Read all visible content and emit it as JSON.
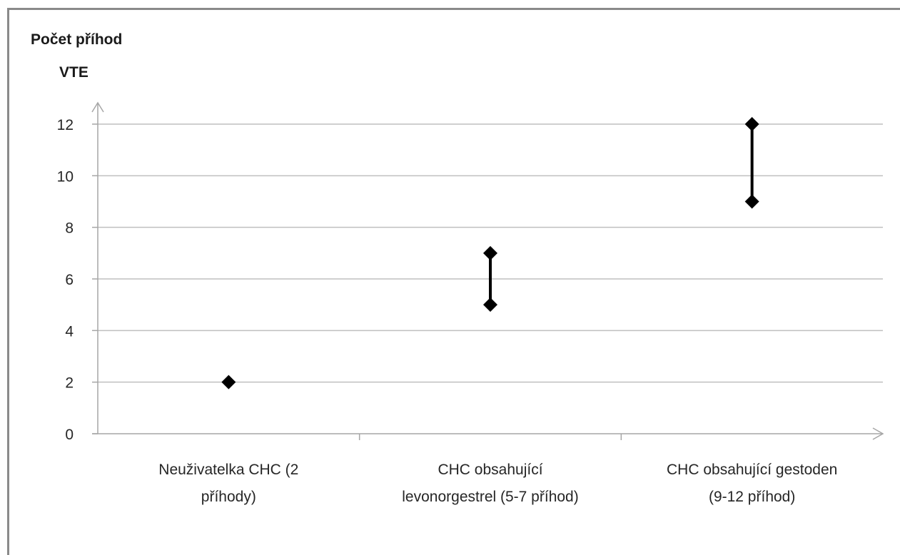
{
  "chart_data": {
    "type": "scatter",
    "ylabel_lines": [
      "Počet příhod",
      "VTE"
    ],
    "categories": [
      [
        "Neuživatelka CHC (2",
        "příhody)"
      ],
      [
        "CHC obsahující",
        "levonorgestrel (5-7 příhod)"
      ],
      [
        "CHC obsahující gestoden",
        "(9-12 příhod)"
      ]
    ],
    "ranges": [
      {
        "low": 2,
        "high": 2
      },
      {
        "low": 5,
        "high": 7
      },
      {
        "low": 9,
        "high": 12
      }
    ],
    "ylim": [
      0,
      12
    ],
    "yticks": [
      0,
      2,
      4,
      6,
      8,
      10,
      12
    ],
    "grid": true,
    "colors": {
      "marker": "#000000",
      "grid": "#bfbfbf",
      "axis": "#a6a6a6"
    }
  }
}
